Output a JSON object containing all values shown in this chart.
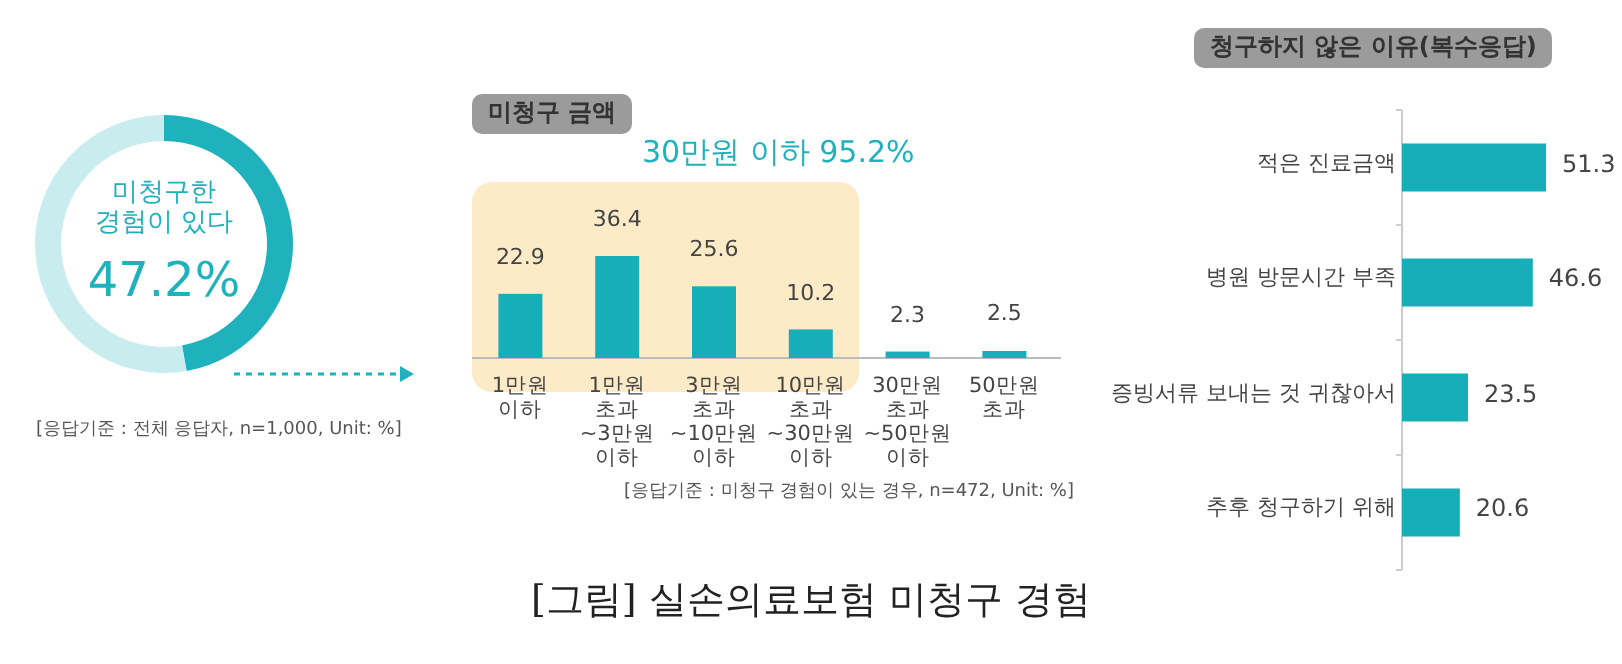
{
  "chart_data": [
    {
      "type": "donut",
      "categories": [
        "미청구한 경험이 있다",
        null
      ],
      "values": [
        47.2,
        52.8
      ],
      "colors": [
        "#1fb1bc",
        "#c9ecef"
      ],
      "value_labels": [
        "47.2%",
        null
      ],
      "annotations": [
        "[응답기준 : 전체 응답자, n=1,000, Unit: %]"
      ]
    },
    {
      "type": "bar",
      "title": "미청구 금액",
      "categories": [
        "1만원 이하",
        "1만원 초과~3만원 이하",
        "3만원 초과~10만원 이하",
        "10만원 초과~30만원 이하",
        "30만원 초과~50만원 이하",
        "50만원 초과"
      ],
      "values": [
        22.9,
        36.4,
        25.6,
        10.2,
        2.3,
        2.5
      ],
      "color": "#16aeb8",
      "data_labels": true,
      "bands": [
        {
          "axis": "x",
          "from": "1만원 이하",
          "to": "10만원 초과~30만원 이하",
          "label": "30만원 이하 95.2%",
          "color": "#fdebc8"
        }
      ],
      "annotations": [
        "[응답기준 : 미청구 경험이 있는 경우, n=472, Unit: %]",
        "[그림] 실손의료보험 미청구 경험"
      ]
    },
    {
      "type": "bar",
      "orientation": "horizontal",
      "title": "청구하지 않은 이유(복수응답)",
      "categories": [
        "적은 진료금액",
        "병원 방문시간 부족",
        "증빙서류 보내는 것 귀찮아서",
        "추후 청구하기 위해"
      ],
      "values": [
        51.3,
        46.6,
        23.5,
        20.6
      ],
      "color": "#16aeb8",
      "data_labels": true
    }
  ]
}
